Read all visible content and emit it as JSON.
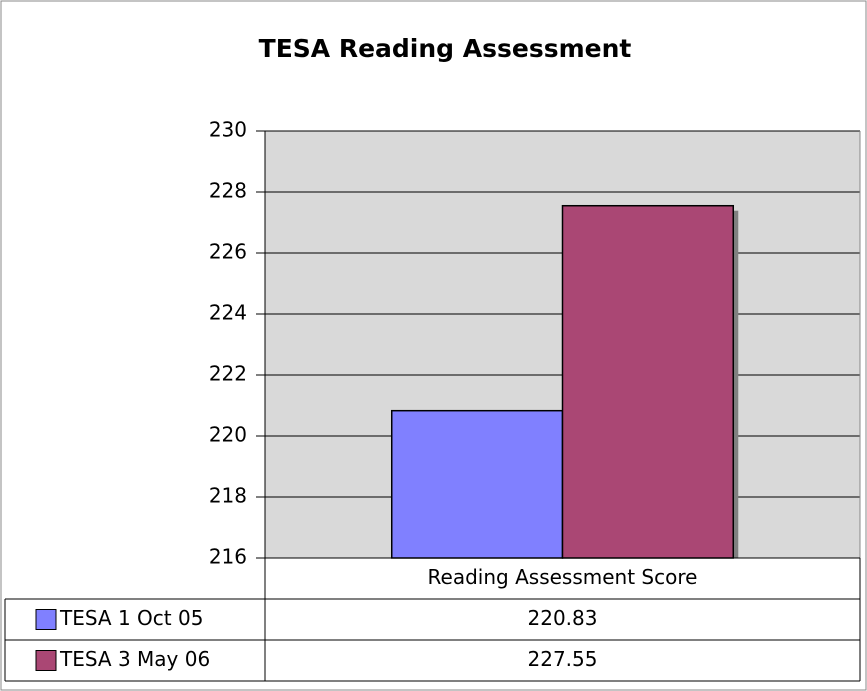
{
  "chart_data": {
    "type": "bar",
    "title": "TESA Reading Assessment",
    "categories": [
      "Reading Assessment Score"
    ],
    "series": [
      {
        "name": "TESA 1 Oct 05",
        "color": "#8080ff",
        "values": [
          220.83
        ]
      },
      {
        "name": "TESA 3 May 06",
        "color": "#aa4774",
        "values": [
          227.55
        ]
      }
    ],
    "ylim": [
      216,
      230
    ],
    "yticks": [
      216,
      218,
      220,
      222,
      224,
      226,
      228,
      230
    ],
    "grid": true,
    "data_table": true
  }
}
